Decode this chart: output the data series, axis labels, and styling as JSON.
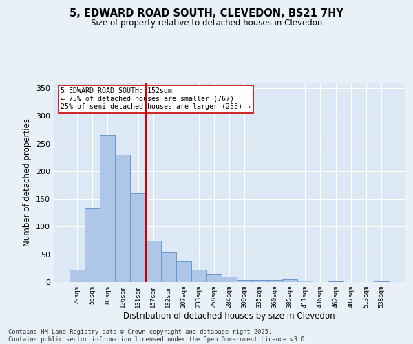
{
  "title_line1": "5, EDWARD ROAD SOUTH, CLEVEDON, BS21 7HY",
  "title_line2": "Size of property relative to detached houses in Clevedon",
  "xlabel": "Distribution of detached houses by size in Clevedon",
  "ylabel": "Number of detached properties",
  "categories": [
    "29sqm",
    "55sqm",
    "80sqm",
    "106sqm",
    "131sqm",
    "157sqm",
    "182sqm",
    "207sqm",
    "233sqm",
    "258sqm",
    "284sqm",
    "309sqm",
    "335sqm",
    "360sqm",
    "385sqm",
    "411sqm",
    "436sqm",
    "462sqm",
    "487sqm",
    "513sqm",
    "538sqm"
  ],
  "values": [
    22,
    133,
    266,
    230,
    160,
    75,
    54,
    37,
    22,
    15,
    10,
    4,
    4,
    4,
    5,
    2,
    0,
    1,
    0,
    0,
    1
  ],
  "bar_color": "#aec6e8",
  "bar_edge_color": "#6699cc",
  "vline_color": "#cc0000",
  "annotation_text": "5 EDWARD ROAD SOUTH: 152sqm\n← 75% of detached houses are smaller (767)\n25% of semi-detached houses are larger (255) →",
  "annotation_box_color": "#ffffff",
  "annotation_box_edge": "#cc0000",
  "ylim": [
    0,
    360
  ],
  "yticks": [
    0,
    50,
    100,
    150,
    200,
    250,
    300,
    350
  ],
  "background_color": "#dde8f5",
  "fig_background_color": "#eaf0f8",
  "grid_color": "#ffffff",
  "footer_line1": "Contains HM Land Registry data © Crown copyright and database right 2025.",
  "footer_line2": "Contains public sector information licensed under the Open Government Licence v3.0."
}
